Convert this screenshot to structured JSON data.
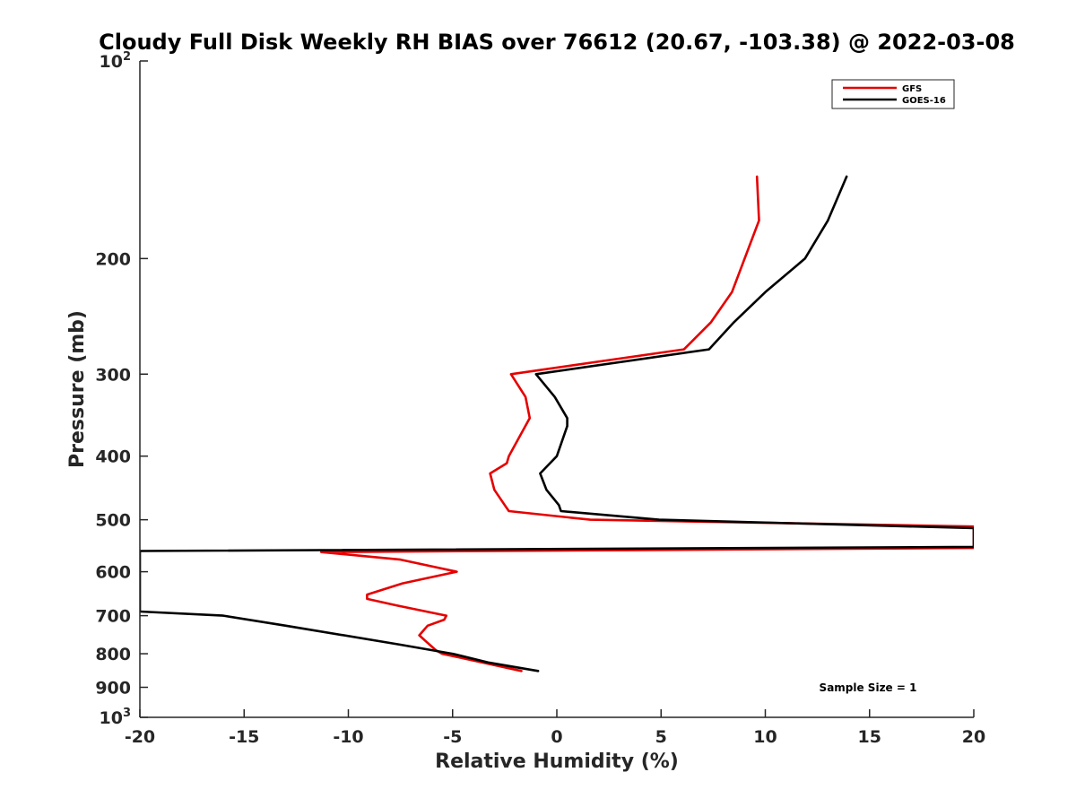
{
  "chart_data": {
    "type": "line",
    "title": "Cloudy Full Disk Weekly RH BIAS over 76612 (20.67, -103.38) @ 2022-03-08",
    "xlabel": "Relative Humidity (%)",
    "ylabel": "Pressure (mb)",
    "xlim": [
      -20,
      20
    ],
    "ylim": [
      100,
      1000
    ],
    "yscale": "log",
    "y_reversed": true,
    "grid": false,
    "legend_position": "top-right",
    "x_ticks": [
      "-20",
      "-15",
      "-10",
      "-5",
      "0",
      "5",
      "10",
      "15",
      "20"
    ],
    "x_tick_values": [
      -20,
      -15,
      -10,
      -5,
      0,
      5,
      10,
      15,
      20
    ],
    "y_ticks": [
      {
        "value": 100,
        "base": "10",
        "exp": "2"
      },
      {
        "value": 200,
        "label": "200"
      },
      {
        "value": 300,
        "label": "300"
      },
      {
        "value": 400,
        "label": "400"
      },
      {
        "value": 500,
        "label": "500"
      },
      {
        "value": 600,
        "label": "600"
      },
      {
        "value": 700,
        "label": "700"
      },
      {
        "value": 800,
        "label": "800"
      },
      {
        "value": 900,
        "label": "900"
      },
      {
        "value": 1000,
        "base": "10",
        "exp": "3"
      }
    ],
    "series": [
      {
        "name": "GFS",
        "color": "#e60000",
        "points": [
          {
            "x": 9.6,
            "y": 150
          },
          {
            "x": 9.7,
            "y": 175
          },
          {
            "x": 8.4,
            "y": 225
          },
          {
            "x": 7.4,
            "y": 250
          },
          {
            "x": 6.1,
            "y": 275
          },
          {
            "x": -2.2,
            "y": 300
          },
          {
            "x": -1.5,
            "y": 325
          },
          {
            "x": -1.3,
            "y": 350
          },
          {
            "x": -2.3,
            "y": 400
          },
          {
            "x": -2.4,
            "y": 410
          },
          {
            "x": -3.2,
            "y": 425
          },
          {
            "x": -3.0,
            "y": 450
          },
          {
            "x": -2.5,
            "y": 475
          },
          {
            "x": -2.3,
            "y": 485
          },
          {
            "x": 1.6,
            "y": 500
          },
          {
            "x": 20.0,
            "y": 512
          },
          {
            "x": 20.0,
            "y": 552
          },
          {
            "x": -11.3,
            "y": 560
          },
          {
            "x": -7.5,
            "y": 575
          },
          {
            "x": -4.8,
            "y": 600
          },
          {
            "x": -7.4,
            "y": 625
          },
          {
            "x": -9.1,
            "y": 650
          },
          {
            "x": -9.1,
            "y": 660
          },
          {
            "x": -7.7,
            "y": 675
          },
          {
            "x": -5.3,
            "y": 700
          },
          {
            "x": -5.4,
            "y": 710
          },
          {
            "x": -6.2,
            "y": 725
          },
          {
            "x": -6.6,
            "y": 750
          },
          {
            "x": -6.3,
            "y": 765
          },
          {
            "x": -5.8,
            "y": 790
          },
          {
            "x": -5.5,
            "y": 800
          },
          {
            "x": -1.7,
            "y": 850
          }
        ]
      },
      {
        "name": "GOES-16",
        "color": "#000000",
        "points": [
          {
            "x": 13.9,
            "y": 150
          },
          {
            "x": 13.0,
            "y": 175
          },
          {
            "x": 11.9,
            "y": 200
          },
          {
            "x": 10.0,
            "y": 225
          },
          {
            "x": 8.5,
            "y": 250
          },
          {
            "x": 7.3,
            "y": 275
          },
          {
            "x": -1.0,
            "y": 300
          },
          {
            "x": -0.1,
            "y": 325
          },
          {
            "x": 0.5,
            "y": 350
          },
          {
            "x": 0.5,
            "y": 360
          },
          {
            "x": 0.0,
            "y": 400
          },
          {
            "x": -0.8,
            "y": 425
          },
          {
            "x": -0.5,
            "y": 450
          },
          {
            "x": 0.1,
            "y": 475
          },
          {
            "x": 0.2,
            "y": 485
          },
          {
            "x": 4.9,
            "y": 500
          },
          {
            "x": 20.0,
            "y": 515
          },
          {
            "x": 20.0,
            "y": 550
          },
          {
            "x": -20.0,
            "y": 558
          },
          {
            "x": -20.0,
            "y": 690
          },
          {
            "x": -16.0,
            "y": 700
          },
          {
            "x": -13.0,
            "y": 725
          },
          {
            "x": -7.5,
            "y": 775
          },
          {
            "x": -5.0,
            "y": 800
          },
          {
            "x": -3.3,
            "y": 825
          },
          {
            "x": -0.9,
            "y": 850
          }
        ]
      }
    ],
    "annotation": "Sample Size = 1"
  }
}
